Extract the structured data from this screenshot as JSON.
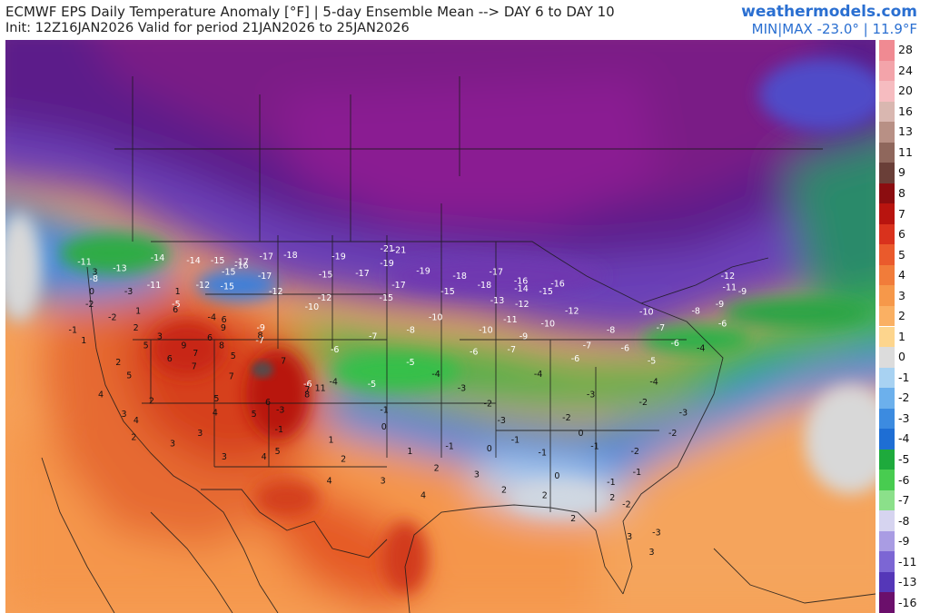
{
  "header": {
    "title_line1": "ECMWF EPS Daily Temperature Anomaly [°F] | 5-day Ensemble Mean --> DAY 6 to DAY 10",
    "title_line2": "Init: 12Z16JAN2026 Valid for period 21JAN2026 to 25JAN2026",
    "brand": "weathermodels.com",
    "minmax": "MIN|MAX -23.0° | 11.9°F"
  },
  "legend": {
    "items": [
      {
        "label": "28",
        "color": "#f08a92"
      },
      {
        "label": "24",
        "color": "#f3a4aa"
      },
      {
        "label": "20",
        "color": "#f6bcc0"
      },
      {
        "label": "16",
        "color": "#d9b7b0"
      },
      {
        "label": "13",
        "color": "#b89085"
      },
      {
        "label": "11",
        "color": "#8f675c"
      },
      {
        "label": "9",
        "color": "#6a3f38"
      },
      {
        "label": "8",
        "color": "#8b0d10"
      },
      {
        "label": "7",
        "color": "#b8140f"
      },
      {
        "label": "6",
        "color": "#d9321d"
      },
      {
        "label": "5",
        "color": "#ea5a2c"
      },
      {
        "label": "4",
        "color": "#f17c3a"
      },
      {
        "label": "3",
        "color": "#f6984a"
      },
      {
        "label": "2",
        "color": "#fab063"
      },
      {
        "label": "1",
        "color": "#fdd58d"
      },
      {
        "label": "0",
        "color": "#dcdcdc"
      },
      {
        "label": "-1",
        "color": "#a8d2f2"
      },
      {
        "label": "-2",
        "color": "#6cb0ec"
      },
      {
        "label": "-3",
        "color": "#3c8be0"
      },
      {
        "label": "-4",
        "color": "#1e6ed4"
      },
      {
        "label": "-5",
        "color": "#1eaa3c"
      },
      {
        "label": "-6",
        "color": "#48cc50"
      },
      {
        "label": "-7",
        "color": "#8be08a"
      },
      {
        "label": "-8",
        "color": "#d6d4f0"
      },
      {
        "label": "-9",
        "color": "#a99ce3"
      },
      {
        "label": "-11",
        "color": "#7c66d4"
      },
      {
        "label": "-13",
        "color": "#5537b8"
      },
      {
        "label": "-16",
        "color": "#6b0f6b"
      }
    ]
  },
  "map_labels": [
    {
      "v": "-21",
      "lon": -100,
      "lat": 49.3
    },
    {
      "v": "-21",
      "lon": -99,
      "lat": 49.2
    },
    {
      "v": "-19",
      "lon": -104,
      "lat": 48.7
    },
    {
      "v": "-19",
      "lon": -100,
      "lat": 48.2
    },
    {
      "v": "-19",
      "lon": -97,
      "lat": 47.6
    },
    {
      "v": "-18",
      "lon": -108,
      "lat": 48.8
    },
    {
      "v": "-18",
      "lon": -94,
      "lat": 47.2
    },
    {
      "v": "-18",
      "lon": -92,
      "lat": 46.5
    },
    {
      "v": "-17",
      "lon": -110,
      "lat": 48.7
    },
    {
      "v": "-17",
      "lon": -112,
      "lat": 48.3
    },
    {
      "v": "-17",
      "lon": -110,
      "lat": 47.2
    },
    {
      "v": "-17",
      "lon": -102,
      "lat": 47.4
    },
    {
      "v": "-17",
      "lon": -99,
      "lat": 46.5
    },
    {
      "v": "-17",
      "lon": -91,
      "lat": 47.5
    },
    {
      "v": "-16",
      "lon": -112,
      "lat": 48
    },
    {
      "v": "-16",
      "lon": -89,
      "lat": 46.8
    },
    {
      "v": "-16",
      "lon": -86,
      "lat": 46.6
    },
    {
      "v": "-15",
      "lon": -114,
      "lat": 48.4
    },
    {
      "v": "-15",
      "lon": -113,
      "lat": 47.5
    },
    {
      "v": "-15",
      "lon": -113,
      "lat": 46.4
    },
    {
      "v": "-15",
      "lon": -105,
      "lat": 47.3
    },
    {
      "v": "-15",
      "lon": -100,
      "lat": 45.5
    },
    {
      "v": "-15",
      "lon": -95,
      "lat": 46
    },
    {
      "v": "-15",
      "lon": -87,
      "lat": 46
    },
    {
      "v": "-14",
      "lon": -119,
      "lat": 48.6
    },
    {
      "v": "-14",
      "lon": -116,
      "lat": 48.4
    },
    {
      "v": "-13",
      "lon": -122,
      "lat": 47.8
    },
    {
      "v": "-12",
      "lon": -115,
      "lat": 46.5
    },
    {
      "v": "-12",
      "lon": -109,
      "lat": 46
    },
    {
      "v": "-12",
      "lon": -105,
      "lat": 45.5
    },
    {
      "v": "-12",
      "lon": -89,
      "lat": 45
    },
    {
      "v": "-12",
      "lon": -85,
      "lat": 44.5
    },
    {
      "v": "-12",
      "lon": -72,
      "lat": 47.2
    },
    {
      "v": "-11",
      "lon": -125,
      "lat": 48.3
    },
    {
      "v": "-11",
      "lon": -119,
      "lat": 46.5
    },
    {
      "v": "-11",
      "lon": -72,
      "lat": 46.3
    },
    {
      "v": "-10",
      "lon": -106,
      "lat": 44.8
    },
    {
      "v": "-10",
      "lon": -96,
      "lat": 44
    },
    {
      "v": "-10",
      "lon": -87,
      "lat": 43.5
    },
    {
      "v": "-10",
      "lon": -79,
      "lat": 44.4
    },
    {
      "v": "-9",
      "lon": -110,
      "lat": 43.2
    },
    {
      "v": "-9",
      "lon": -71,
      "lat": 46
    },
    {
      "v": "-8",
      "lon": -124,
      "lat": 47
    },
    {
      "v": "-8",
      "lon": -98,
      "lat": 43
    },
    {
      "v": "-8",
      "lon": -82,
      "lat": 43
    },
    {
      "v": "-8",
      "lon": -75,
      "lat": 44.5
    },
    {
      "v": "-7",
      "lon": -110,
      "lat": 42.2
    },
    {
      "v": "-7",
      "lon": -101,
      "lat": 42.5
    },
    {
      "v": "-7",
      "lon": -90,
      "lat": 41.5
    },
    {
      "v": "-7",
      "lon": -78,
      "lat": 43.2
    },
    {
      "v": "-6",
      "lon": -104,
      "lat": 41.5
    },
    {
      "v": "-6",
      "lon": -93,
      "lat": 41.3
    },
    {
      "v": "-6",
      "lon": -85,
      "lat": 40.8
    },
    {
      "v": "-6",
      "lon": -77,
      "lat": 42
    },
    {
      "v": "-6",
      "lon": -106,
      "lat": 38.8
    },
    {
      "v": "-5",
      "lon": -117,
      "lat": 45
    },
    {
      "v": "-5",
      "lon": -98,
      "lat": 40.5
    },
    {
      "v": "-5",
      "lon": -79,
      "lat": 40.6
    },
    {
      "v": "-5",
      "lon": -101,
      "lat": 38.8
    },
    {
      "v": "-4",
      "lon": -114,
      "lat": 44
    },
    {
      "v": "-4",
      "lon": -104,
      "lat": 39
    },
    {
      "v": "-4",
      "lon": -96,
      "lat": 39.6
    },
    {
      "v": "-4",
      "lon": -88,
      "lat": 39.6
    },
    {
      "v": "-4",
      "lon": -79,
      "lat": 39
    },
    {
      "v": "-3",
      "lon": -121,
      "lat": 46
    },
    {
      "v": "-3",
      "lon": -94,
      "lat": 38.5
    },
    {
      "v": "-3",
      "lon": -84,
      "lat": 38
    },
    {
      "v": "-3",
      "lon": -108,
      "lat": 36.8
    },
    {
      "v": "-3",
      "lon": -77,
      "lat": 36.6
    },
    {
      "v": "-3",
      "lon": -91,
      "lat": 36
    },
    {
      "v": "-2",
      "lon": -124,
      "lat": 45
    },
    {
      "v": "-2",
      "lon": -122,
      "lat": 44
    },
    {
      "v": "-2",
      "lon": -92,
      "lat": 37.3
    },
    {
      "v": "-2",
      "lon": -86,
      "lat": 36.2
    },
    {
      "v": "-2",
      "lon": -78,
      "lat": 35
    },
    {
      "v": "-2",
      "lon": -81,
      "lat": 33.6
    },
    {
      "v": "-1",
      "lon": -100,
      "lat": 36.8
    },
    {
      "v": "-1",
      "lon": -108,
      "lat": 35.3
    },
    {
      "v": "-1",
      "lon": -90,
      "lat": 34.5
    },
    {
      "v": "-1",
      "lon": -84,
      "lat": 34
    },
    {
      "v": "-1",
      "lon": -81,
      "lat": 32
    },
    {
      "v": "-1",
      "lon": -125,
      "lat": 43
    },
    {
      "v": "0",
      "lon": -124,
      "lat": 46
    },
    {
      "v": "0",
      "lon": -100,
      "lat": 35.5
    },
    {
      "v": "0",
      "lon": -92,
      "lat": 33.8
    },
    {
      "v": "0",
      "lon": -85,
      "lat": 35
    },
    {
      "v": "1",
      "lon": -117,
      "lat": 46
    },
    {
      "v": "1",
      "lon": -120,
      "lat": 44.5
    },
    {
      "v": "1",
      "lon": -104,
      "lat": 34.5
    },
    {
      "v": "1",
      "lon": -98,
      "lat": 33.6
    },
    {
      "v": "1",
      "lon": -124,
      "lat": 42.2
    },
    {
      "v": "2",
      "lon": -120,
      "lat": 43.2
    },
    {
      "v": "2",
      "lon": -121,
      "lat": 40.5
    },
    {
      "v": "2",
      "lon": -118,
      "lat": 37.5
    },
    {
      "v": "2",
      "lon": -103,
      "lat": 33
    },
    {
      "v": "2",
      "lon": -96,
      "lat": 32.3
    },
    {
      "v": "2",
      "lon": -91,
      "lat": 30.6
    },
    {
      "v": "2",
      "lon": -83,
      "lat": 30
    },
    {
      "v": "2",
      "lon": -86,
      "lat": 28.4
    },
    {
      "v": "3",
      "lon": -124,
      "lat": 47.5
    },
    {
      "v": "3",
      "lon": -118,
      "lat": 42.5
    },
    {
      "v": "3",
      "lon": -120,
      "lat": 36.5
    },
    {
      "v": "3",
      "lon": -114,
      "lat": 35
    },
    {
      "v": "3",
      "lon": -100,
      "lat": 31.3
    },
    {
      "v": "3",
      "lon": -93,
      "lat": 31.8
    },
    {
      "v": "3",
      "lon": -82,
      "lat": 27
    },
    {
      "v": "3",
      "lon": -112,
      "lat": 33.2
    },
    {
      "v": "4",
      "lon": -119,
      "lat": 36
    },
    {
      "v": "4",
      "lon": -113,
      "lat": 36.6
    },
    {
      "v": "4",
      "lon": -104,
      "lat": 31.3
    },
    {
      "v": "4",
      "lon": -97,
      "lat": 30.2
    },
    {
      "v": "4",
      "lon": -109,
      "lat": 33.2
    },
    {
      "v": "5",
      "lon": -119,
      "lat": 41.8
    },
    {
      "v": "5",
      "lon": -112,
      "lat": 41
    },
    {
      "v": "5",
      "lon": -113,
      "lat": 37.7
    },
    {
      "v": "5",
      "lon": -110,
      "lat": 36.5
    },
    {
      "v": "5",
      "lon": -108,
      "lat": 33.6
    },
    {
      "v": "6",
      "lon": -117,
      "lat": 44.6
    },
    {
      "v": "6",
      "lon": -113,
      "lat": 43.8
    },
    {
      "v": "6",
      "lon": -114,
      "lat": 42.4
    },
    {
      "v": "6",
      "lon": -117,
      "lat": 40.8
    },
    {
      "v": "6",
      "lon": -109,
      "lat": 37.4
    },
    {
      "v": "7",
      "lon": -115,
      "lat": 41.2
    },
    {
      "v": "7",
      "lon": -115,
      "lat": 40.2
    },
    {
      "v": "7",
      "lon": -108,
      "lat": 40.6
    },
    {
      "v": "7",
      "lon": -112,
      "lat": 39.4
    },
    {
      "v": "7",
      "lon": -106,
      "lat": 38.4
    },
    {
      "v": "8",
      "lon": -113,
      "lat": 41.8
    },
    {
      "v": "8",
      "lon": -110,
      "lat": 42.6
    },
    {
      "v": "8",
      "lon": -106,
      "lat": 38
    },
    {
      "v": "9",
      "lon": -116,
      "lat": 41.8
    },
    {
      "v": "9",
      "lon": -113,
      "lat": 43.2
    },
    {
      "v": "11",
      "lon": -105,
      "lat": 38.5
    },
    {
      "v": "-9",
      "lon": -89,
      "lat": 42.5
    },
    {
      "v": "-10",
      "lon": -92,
      "lat": 43
    },
    {
      "v": "-11",
      "lon": -90,
      "lat": 43.8
    },
    {
      "v": "-13",
      "lon": -91,
      "lat": 45.3
    },
    {
      "v": "-14",
      "lon": -89,
      "lat": 46.2
    },
    {
      "v": "-7",
      "lon": -84,
      "lat": 41.8
    },
    {
      "v": "-6",
      "lon": -81,
      "lat": 41.6
    },
    {
      "v": "-9",
      "lon": -73,
      "lat": 45
    },
    {
      "v": "-6",
      "lon": -73,
      "lat": 43.5
    },
    {
      "v": "-4",
      "lon": -75,
      "lat": 41.6
    },
    {
      "v": "-2",
      "lon": -80,
      "lat": 37.4
    },
    {
      "v": "-1",
      "lon": -88,
      "lat": 33.5
    },
    {
      "v": "-1",
      "lon": -95,
      "lat": 34
    },
    {
      "v": "0",
      "lon": -87,
      "lat": 31.7
    },
    {
      "v": "2",
      "lon": -88,
      "lat": 30.2
    },
    {
      "v": "-1",
      "lon": -83,
      "lat": 31.2
    },
    {
      "v": "-2",
      "lon": -82,
      "lat": 29.5
    },
    {
      "v": "-3",
      "lon": -80,
      "lat": 27.3
    },
    {
      "v": "3",
      "lon": -80.5,
      "lat": 25.8
    },
    {
      "v": "4",
      "lon": -122,
      "lat": 38
    },
    {
      "v": "5",
      "lon": -120,
      "lat": 39.5
    },
    {
      "v": "3",
      "lon": -116,
      "lat": 34.2
    },
    {
      "v": "2",
      "lon": -119,
      "lat": 34.7
    }
  ]
}
